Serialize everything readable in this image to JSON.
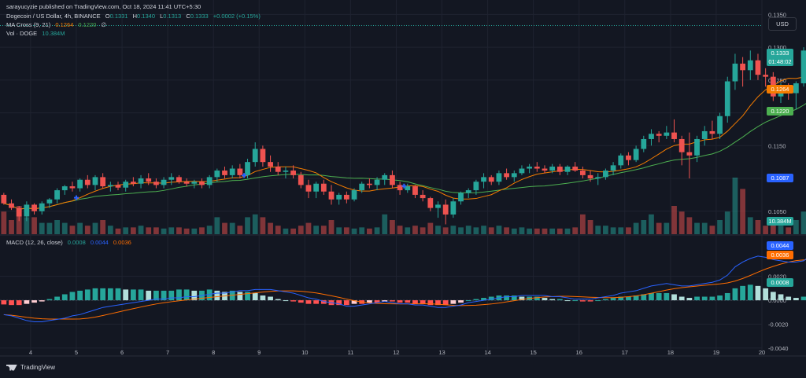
{
  "publisher": "sarayucyzie published on TradingView.com, Oct 18, 2024 11:41 UTC+5:30",
  "legend": {
    "symbol": "Dogecoin / US Dollar, 4h, BINANCE",
    "o_label": "O",
    "o": "0.1331",
    "h_label": "H",
    "h": "0.1340",
    "l_label": "L",
    "l": "0.1313",
    "c_label": "C",
    "c": "0.1333",
    "change": "+0.0002 (+0.15%)",
    "ma_label": "MA Cross (9, 21)",
    "ma_fast": "0.1264",
    "ma_slow": "0.1220",
    "ma_extra": "∅",
    "vol_label": "Vol · DOGE",
    "vol": "10.384M",
    "macd_label": "MACD (12, 26, close)",
    "macd_hist": "0.0008",
    "macd_line": "0.0044",
    "macd_signal": "0.0036"
  },
  "currency_button": "USD",
  "price_labels": {
    "last": "0.1333",
    "countdown": "01:48:02",
    "ma_fast": "0.1264",
    "ma_slow": "0.1220",
    "low_marker": "0.1087",
    "volume": "10.384M",
    "macd_line": "0.0044",
    "macd_signal": "0.0036",
    "macd_hist": "0.0008"
  },
  "brand": "TradingView",
  "colors": {
    "up": "#26a69a",
    "down": "#ef5350",
    "ma_fast": "#f57c00",
    "ma_slow": "#4caf50",
    "macd_line": "#2962ff",
    "macd_signal": "#ff6d00",
    "hist_up_strong": "#26a69a",
    "hist_up_weak": "#b2dfdb",
    "hist_down_strong": "#ff5252",
    "hist_down_weak": "#ffcdd2",
    "cross_marker": "#2962ff"
  },
  "chart_data": {
    "type": "candlestick",
    "price_ylim": [
      0.1015,
      0.1372
    ],
    "price_ticks": [
      "0.1350",
      "0.1300",
      "0.1250",
      "0.1200",
      "0.1150",
      "0.1100",
      "0.1050"
    ],
    "macd_ylim": [
      -0.0046,
      0.0054
    ],
    "macd_ticks": [
      "0.0020",
      "0.0000",
      "-0.0020",
      "-0.0040"
    ],
    "x_day_range": [
      3.33,
      20
    ],
    "x_ticks": [
      "4",
      "5",
      "6",
      "7",
      "8",
      "9",
      "10",
      "11",
      "12",
      "13",
      "14",
      "15",
      "16",
      "17",
      "18",
      "19",
      "20"
    ],
    "start_day": 3.33,
    "bars_per_day": 6,
    "last_price": 0.1333,
    "ma_cross_days": [
      5,
      8.67,
      12.17
    ],
    "candles": [
      [
        0.1075,
        0.1078,
        0.106,
        0.1062,
        0.4
      ],
      [
        0.1062,
        0.1068,
        0.1052,
        0.1055,
        0.25
      ],
      [
        0.1055,
        0.1058,
        0.1035,
        0.1042,
        0.5
      ],
      [
        0.1042,
        0.1065,
        0.1035,
        0.106,
        0.3
      ],
      [
        0.106,
        0.1062,
        0.1045,
        0.105,
        0.3
      ],
      [
        0.105,
        0.1065,
        0.1045,
        0.1062,
        0.2
      ],
      [
        0.1062,
        0.107,
        0.1055,
        0.1068,
        0.2
      ],
      [
        0.1068,
        0.1085,
        0.1062,
        0.1082,
        0.25
      ],
      [
        0.1082,
        0.109,
        0.1075,
        0.1088,
        0.2
      ],
      [
        0.1088,
        0.1095,
        0.108,
        0.1085,
        0.15
      ],
      [
        0.1085,
        0.11,
        0.108,
        0.1098,
        0.2
      ],
      [
        0.1098,
        0.1105,
        0.1085,
        0.109,
        0.15
      ],
      [
        0.109,
        0.1105,
        0.1082,
        0.1102,
        0.2
      ],
      [
        0.1102,
        0.1108,
        0.1085,
        0.1088,
        0.25
      ],
      [
        0.1088,
        0.1095,
        0.108,
        0.109,
        0.15
      ],
      [
        0.109,
        0.1095,
        0.1082,
        0.1086,
        0.1
      ],
      [
        0.1086,
        0.1098,
        0.108,
        0.1095,
        0.12
      ],
      [
        0.1095,
        0.1102,
        0.1088,
        0.1092,
        0.12
      ],
      [
        0.1092,
        0.1105,
        0.1085,
        0.11,
        0.15
      ],
      [
        0.11,
        0.1108,
        0.109,
        0.1095,
        0.12
      ],
      [
        0.1095,
        0.11,
        0.1085,
        0.109,
        0.12
      ],
      [
        0.109,
        0.1102,
        0.1085,
        0.1098,
        0.1
      ],
      [
        0.1098,
        0.1108,
        0.109,
        0.1102,
        0.12
      ],
      [
        0.1102,
        0.1105,
        0.1092,
        0.1095,
        0.12
      ],
      [
        0.1095,
        0.11,
        0.1088,
        0.1092,
        0.1
      ],
      [
        0.1092,
        0.1098,
        0.1085,
        0.1095,
        0.1
      ],
      [
        0.1095,
        0.11,
        0.1085,
        0.109,
        0.12
      ],
      [
        0.109,
        0.1105,
        0.1085,
        0.1102,
        0.15
      ],
      [
        0.1102,
        0.1115,
        0.1095,
        0.1112,
        0.3
      ],
      [
        0.1112,
        0.1118,
        0.11,
        0.1105,
        0.2
      ],
      [
        0.1105,
        0.112,
        0.11,
        0.1115,
        0.2
      ],
      [
        0.1115,
        0.1122,
        0.11,
        0.1105,
        0.15
      ],
      [
        0.1105,
        0.113,
        0.11,
        0.1125,
        0.3
      ],
      [
        0.1125,
        0.1155,
        0.1118,
        0.1145,
        0.35
      ],
      [
        0.1145,
        0.115,
        0.1118,
        0.1125,
        0.3
      ],
      [
        0.1125,
        0.1135,
        0.111,
        0.1118,
        0.2
      ],
      [
        0.1118,
        0.1125,
        0.1105,
        0.111,
        0.15
      ],
      [
        0.111,
        0.1118,
        0.11,
        0.1112,
        0.1
      ],
      [
        0.1112,
        0.112,
        0.11,
        0.1105,
        0.1
      ],
      [
        0.1105,
        0.111,
        0.1085,
        0.109,
        0.15
      ],
      [
        0.109,
        0.1098,
        0.107,
        0.108,
        0.2
      ],
      [
        0.108,
        0.1095,
        0.107,
        0.1092,
        0.15
      ],
      [
        0.1092,
        0.1098,
        0.1075,
        0.108,
        0.15
      ],
      [
        0.108,
        0.109,
        0.106,
        0.1068,
        0.25
      ],
      [
        0.1068,
        0.1078,
        0.106,
        0.1075,
        0.12
      ],
      [
        0.1075,
        0.108,
        0.1062,
        0.1068,
        0.12
      ],
      [
        0.1068,
        0.1085,
        0.1065,
        0.1082,
        0.1
      ],
      [
        0.1082,
        0.1095,
        0.1078,
        0.1092,
        0.12
      ],
      [
        0.1092,
        0.11,
        0.1085,
        0.109,
        0.1
      ],
      [
        0.109,
        0.1102,
        0.1082,
        0.1098,
        0.12
      ],
      [
        0.1098,
        0.1108,
        0.109,
        0.1105,
        0.35
      ],
      [
        0.1105,
        0.1112,
        0.1085,
        0.109,
        0.25
      ],
      [
        0.109,
        0.1095,
        0.1075,
        0.1082,
        0.15
      ],
      [
        0.1082,
        0.1092,
        0.1078,
        0.1088,
        0.12
      ],
      [
        0.1088,
        0.109,
        0.107,
        0.1075,
        0.15
      ],
      [
        0.1075,
        0.1082,
        0.1065,
        0.107,
        0.12
      ],
      [
        0.107,
        0.1072,
        0.105,
        0.1055,
        0.2
      ],
      [
        0.1055,
        0.1065,
        0.104,
        0.106,
        0.15
      ],
      [
        0.106,
        0.1068,
        0.103,
        0.1045,
        0.12
      ],
      [
        0.1045,
        0.107,
        0.104,
        0.1065,
        0.15
      ],
      [
        0.1065,
        0.108,
        0.106,
        0.1078,
        0.12
      ],
      [
        0.1078,
        0.1085,
        0.107,
        0.1082,
        0.15
      ],
      [
        0.1082,
        0.1098,
        0.1075,
        0.1095,
        0.12
      ],
      [
        0.1095,
        0.1108,
        0.1085,
        0.1102,
        0.15
      ],
      [
        0.1102,
        0.1105,
        0.109,
        0.1095,
        0.12
      ],
      [
        0.1095,
        0.1112,
        0.109,
        0.1108,
        0.15
      ],
      [
        0.1108,
        0.1115,
        0.1098,
        0.1102,
        0.12
      ],
      [
        0.1102,
        0.1112,
        0.1095,
        0.1108,
        0.1
      ],
      [
        0.1108,
        0.112,
        0.1105,
        0.1115,
        0.12
      ],
      [
        0.1115,
        0.1122,
        0.1108,
        0.1118,
        0.1
      ],
      [
        0.1118,
        0.1125,
        0.111,
        0.1115,
        0.1
      ],
      [
        0.1115,
        0.112,
        0.1108,
        0.1112,
        0.1
      ],
      [
        0.1112,
        0.1122,
        0.1108,
        0.1118,
        0.1
      ],
      [
        0.1118,
        0.1122,
        0.1105,
        0.111,
        0.1
      ],
      [
        0.111,
        0.112,
        0.1105,
        0.1118,
        0.1
      ],
      [
        0.1118,
        0.1125,
        0.111,
        0.1112,
        0.12
      ],
      [
        0.1112,
        0.1118,
        0.11,
        0.1105,
        0.35
      ],
      [
        0.1105,
        0.1112,
        0.1095,
        0.11,
        0.25
      ],
      [
        0.11,
        0.1108,
        0.109,
        0.1102,
        0.15
      ],
      [
        0.1102,
        0.1115,
        0.1098,
        0.1112,
        0.15
      ],
      [
        0.1112,
        0.1125,
        0.1105,
        0.112,
        0.12
      ],
      [
        0.112,
        0.1138,
        0.1115,
        0.1135,
        0.12
      ],
      [
        0.1135,
        0.114,
        0.112,
        0.1128,
        0.12
      ],
      [
        0.1128,
        0.115,
        0.1125,
        0.1145,
        0.2
      ],
      [
        0.1145,
        0.1165,
        0.114,
        0.116,
        0.25
      ],
      [
        0.116,
        0.1175,
        0.115,
        0.1168,
        0.35
      ],
      [
        0.1168,
        0.1172,
        0.1155,
        0.1165,
        0.2
      ],
      [
        0.1165,
        0.118,
        0.116,
        0.117,
        0.2
      ],
      [
        0.117,
        0.119,
        0.1155,
        0.116,
        0.5
      ],
      [
        0.116,
        0.1165,
        0.112,
        0.114,
        0.4
      ],
      [
        0.114,
        0.117,
        0.11,
        0.1135,
        0.3
      ],
      [
        0.1135,
        0.1165,
        0.1125,
        0.116,
        0.2
      ],
      [
        0.116,
        0.118,
        0.115,
        0.1172,
        0.2
      ],
      [
        0.1172,
        0.1188,
        0.116,
        0.1168,
        0.15
      ],
      [
        0.1168,
        0.12,
        0.116,
        0.1195,
        0.25
      ],
      [
        0.1195,
        0.1255,
        0.1185,
        0.1248,
        0.4
      ],
      [
        0.1248,
        0.129,
        0.1235,
        0.1275,
        1.0
      ],
      [
        0.1275,
        0.1285,
        0.124,
        0.1265,
        0.8
      ],
      [
        0.1265,
        0.1295,
        0.125,
        0.128,
        0.3
      ],
      [
        0.128,
        0.129,
        0.125,
        0.1258,
        0.25
      ],
      [
        0.1258,
        0.1268,
        0.124,
        0.1255,
        0.15
      ],
      [
        0.1255,
        0.1262,
        0.1218,
        0.1225,
        0.3
      ],
      [
        0.1225,
        0.1245,
        0.1215,
        0.1238,
        0.15
      ],
      [
        0.1238,
        0.1245,
        0.122,
        0.123,
        0.12
      ],
      [
        0.123,
        0.1248,
        0.1205,
        0.1245,
        0.25
      ],
      [
        0.1245,
        0.13,
        0.124,
        0.1295,
        0.4
      ],
      [
        0.1295,
        0.1345,
        0.129,
        0.133,
        0.85
      ],
      [
        0.1331,
        0.134,
        0.1313,
        0.1333,
        0.1
      ]
    ],
    "vol_max_m": 45,
    "macd": [
      [
        -0.00035,
        -0.0012
      ],
      [
        -0.0004,
        -0.0013
      ],
      [
        -0.0004,
        -0.0015
      ],
      [
        -0.0003,
        -0.0017
      ],
      [
        -0.0002,
        -0.0018
      ],
      [
        -0.0001,
        -0.0018
      ],
      [
        0.0001,
        -0.0017
      ],
      [
        0.0003,
        -0.0016
      ],
      [
        0.0005,
        -0.0015
      ],
      [
        0.0007,
        -0.0013
      ],
      [
        0.0008,
        -0.0012
      ],
      [
        0.0009,
        -0.001
      ],
      [
        0.001,
        -0.0008
      ],
      [
        0.001,
        -0.0006
      ],
      [
        0.001,
        -0.0005
      ],
      [
        0.001,
        -0.0004
      ],
      [
        0.0009,
        -0.0003
      ],
      [
        0.0009,
        -0.0002
      ],
      [
        0.0009,
        -0.0001
      ],
      [
        0.0008,
        0.0
      ],
      [
        0.0008,
        0.0001
      ],
      [
        0.0008,
        0.0001
      ],
      [
        0.0008,
        0.0002
      ],
      [
        0.0009,
        0.0002
      ],
      [
        0.0009,
        0.0003
      ],
      [
        0.0008,
        0.0003
      ],
      [
        0.0008,
        0.0004
      ],
      [
        0.0009,
        0.0005
      ],
      [
        0.0008,
        0.0006
      ],
      [
        0.0007,
        0.0006
      ],
      [
        0.0008,
        0.0007
      ],
      [
        0.0007,
        0.0008
      ],
      [
        0.0007,
        0.0008
      ],
      [
        0.0006,
        0.0009
      ],
      [
        0.0004,
        0.0009
      ],
      [
        0.0003,
        0.0009
      ],
      [
        0.0001,
        0.0008
      ],
      [
        0.0,
        0.0007
      ],
      [
        -0.0001,
        0.0006
      ],
      [
        -0.0002,
        0.0004
      ],
      [
        -0.0003,
        0.0002
      ],
      [
        -0.0003,
        0.0001
      ],
      [
        -0.0003,
        -0.0001
      ],
      [
        -0.0004,
        -0.0002
      ],
      [
        -0.0004,
        -0.0003
      ],
      [
        -0.0004,
        -0.0005
      ],
      [
        -0.0003,
        -0.0005
      ],
      [
        -0.0003,
        -0.0004
      ],
      [
        -0.0002,
        -0.0003
      ],
      [
        -0.0002,
        -0.0002
      ],
      [
        -0.0001,
        -0.0001
      ],
      [
        -0.0001,
        -0.0002
      ],
      [
        -0.0002,
        -0.0003
      ],
      [
        -0.0002,
        -0.0003
      ],
      [
        -0.0003,
        -0.0004
      ],
      [
        -0.0003,
        -0.0004
      ],
      [
        -0.0004,
        -0.0005
      ],
      [
        -0.0004,
        -0.0006
      ],
      [
        -0.0004,
        -0.0006
      ],
      [
        -0.0003,
        -0.0005
      ],
      [
        -0.0002,
        -0.0004
      ],
      [
        0.0,
        -0.0002
      ],
      [
        0.0001,
        -0.0001
      ],
      [
        0.0002,
        0.0
      ],
      [
        0.0003,
        0.0001
      ],
      [
        0.0004,
        0.0002
      ],
      [
        0.0004,
        0.0003
      ],
      [
        0.0004,
        0.0003
      ],
      [
        0.0003,
        0.0004
      ],
      [
        0.0003,
        0.0004
      ],
      [
        0.0003,
        0.0004
      ],
      [
        0.0002,
        0.0004
      ],
      [
        0.0001,
        0.0003
      ],
      [
        0.0001,
        0.0003
      ],
      [
        0.0,
        0.0002
      ],
      [
        0.0,
        0.0001
      ],
      [
        -0.0001,
        0.0001
      ],
      [
        -0.0001,
        0.0001
      ],
      [
        0.0,
        0.0002
      ],
      [
        0.0001,
        0.0003
      ],
      [
        0.0002,
        0.0004
      ],
      [
        0.0003,
        0.0006
      ],
      [
        0.0003,
        0.0007
      ],
      [
        0.0004,
        0.0008
      ],
      [
        0.0005,
        0.001
      ],
      [
        0.0006,
        0.0012
      ],
      [
        0.0006,
        0.0013
      ],
      [
        0.0006,
        0.0014
      ],
      [
        0.0005,
        0.0013
      ],
      [
        0.0003,
        0.0012
      ],
      [
        0.0002,
        0.0012
      ],
      [
        0.0003,
        0.0013
      ],
      [
        0.0003,
        0.0014
      ],
      [
        0.0003,
        0.0015
      ],
      [
        0.0004,
        0.0017
      ],
      [
        0.0006,
        0.0021
      ],
      [
        0.001,
        0.0028
      ],
      [
        0.0012,
        0.0032
      ],
      [
        0.0013,
        0.0035
      ],
      [
        0.0012,
        0.0037
      ],
      [
        0.001,
        0.0036
      ],
      [
        0.0007,
        0.0034
      ],
      [
        0.0005,
        0.0033
      ],
      [
        0.0003,
        0.0032
      ],
      [
        0.0002,
        0.0032
      ],
      [
        0.0003,
        0.0033
      ],
      [
        0.0006,
        0.0038
      ],
      [
        0.0008,
        0.0044
      ]
    ]
  }
}
